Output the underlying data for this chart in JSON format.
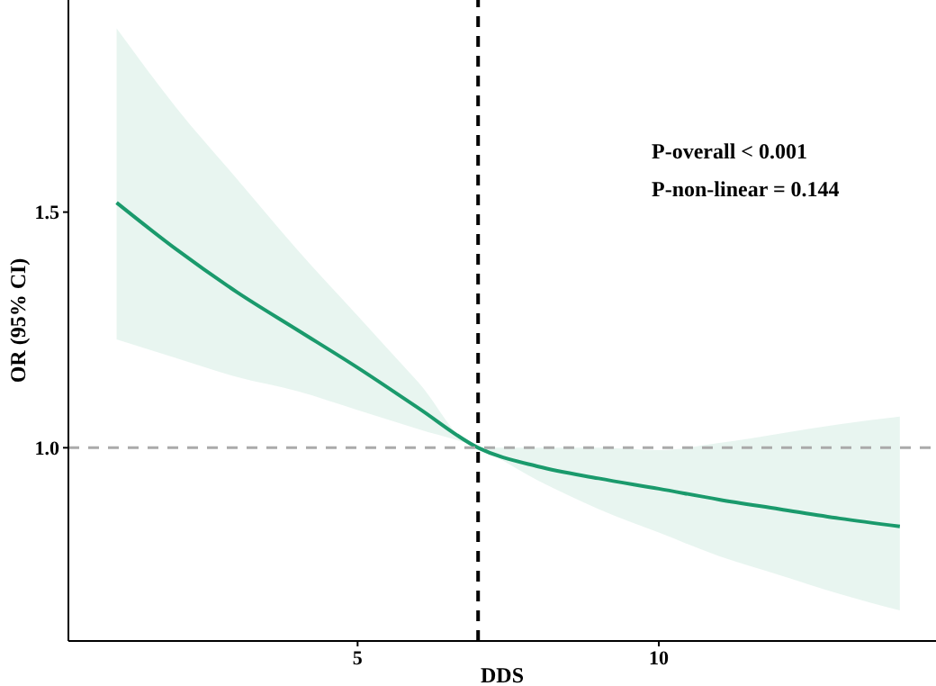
{
  "chart_data": {
    "type": "line",
    "xlabel": "DDS",
    "ylabel": "OR (95% CI)",
    "xlim": [
      0.2,
      14.6
    ],
    "ylim": [
      0.59,
      1.95
    ],
    "xticks": [
      5,
      10
    ],
    "yticks": [
      {
        "value": 1,
        "label": "1.0"
      },
      {
        "value": 1.5,
        "label": "1.5"
      }
    ],
    "grid": false,
    "series": [
      {
        "color": "#1a9a6c",
        "x": [
          1,
          2,
          3,
          4,
          5,
          6,
          7,
          8,
          9,
          10,
          11,
          12,
          13,
          14
        ],
        "values": [
          1.52,
          1.42,
          1.33,
          1.25,
          1.17,
          1.085,
          1.0,
          0.96,
          0.935,
          0.913,
          0.89,
          0.87,
          0.85,
          0.833
        ],
        "lower": [
          1.23,
          1.19,
          1.15,
          1.12,
          1.08,
          1.04,
          1.0,
          0.93,
          0.87,
          0.82,
          0.77,
          0.73,
          0.69,
          0.655
        ],
        "upper": [
          1.89,
          1.72,
          1.57,
          1.42,
          1.28,
          1.14,
          1.0,
          1.0,
          1.0,
          0.995,
          1.01,
          1.03,
          1.05,
          1.066
        ]
      }
    ],
    "ref_lines": [
      {
        "axis": "x",
        "value": 7,
        "color": "#000000",
        "line_style": "dashed"
      },
      {
        "axis": "y",
        "value": 1.0,
        "color": "#aaaaaa",
        "line_style": "dashed"
      }
    ],
    "annotations": [
      "P-overall < 0.001",
      "P-non-linear = 0.144"
    ]
  }
}
